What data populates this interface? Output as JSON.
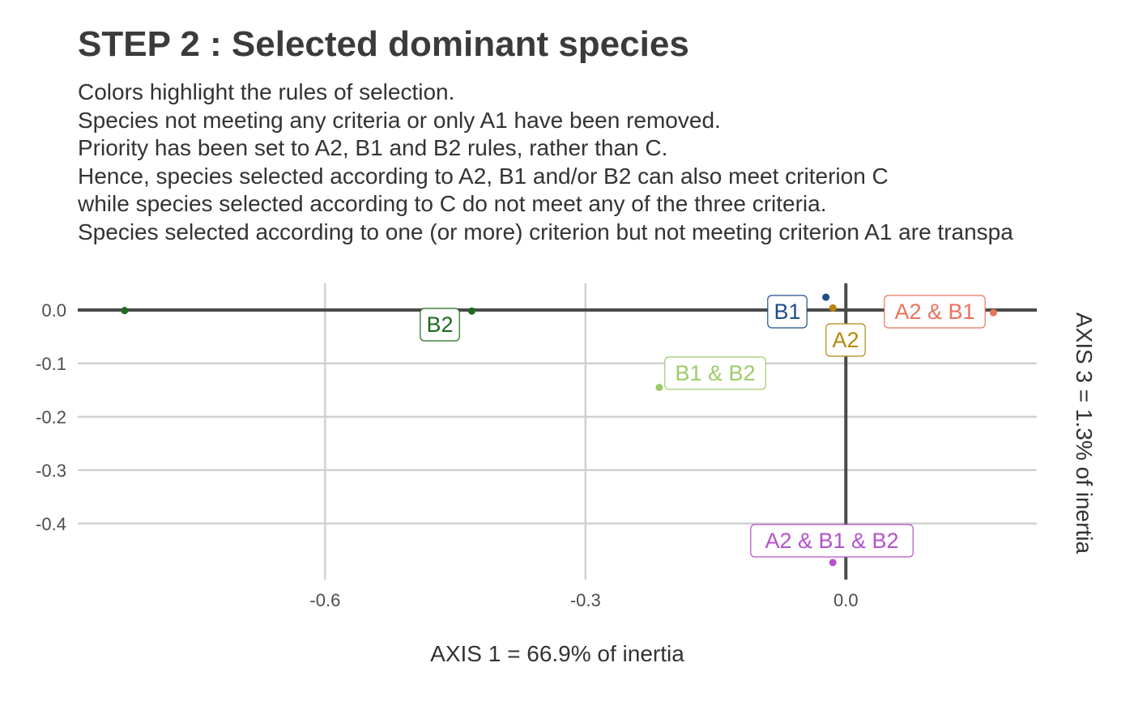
{
  "title": "STEP 2 : Selected dominant species",
  "subtitle_lines": [
    "Colors highlight the rules of selection.",
    "Species not meeting any criteria or only A1 have been removed.",
    "Priority has been set to A2, B1 and B2 rules, rather than C.",
    "Hence, species selected according to A2, B1 and/or B2 can also meet criterion C",
    "while species selected according to C do not meet any of the three criteria.",
    "Species selected according to one (or more) criterion but not meeting criterion A1 are transpa"
  ],
  "chart_data": {
    "type": "scatter",
    "title": "STEP 2 : Selected dominant species",
    "xlabel": "AXIS 1 = 66.9% of inertia",
    "ylabel": "AXIS 3 = 1.3% of inertia",
    "xlim": [
      -0.885,
      0.22
    ],
    "ylim": [
      -0.505,
      0.05
    ],
    "xticks": [
      -0.6,
      -0.3,
      0.0
    ],
    "xtick_labels": [
      "-0.6",
      "-0.3",
      "0.0"
    ],
    "yticks": [
      0.0,
      -0.1,
      -0.2,
      -0.3,
      -0.4
    ],
    "ytick_labels": [
      "0.0",
      "-0.1",
      "-0.2",
      "-0.3",
      "-0.4"
    ],
    "grid": true,
    "reference_lines": {
      "x": 0,
      "y": 0
    },
    "points": [
      {
        "x": -0.831,
        "y": -0.001,
        "color": "#1e6b1e"
      },
      {
        "x": -0.431,
        "y": -0.002,
        "color": "#1e6b1e"
      },
      {
        "x": -0.023,
        "y": 0.024,
        "color": "#1f4e89"
      },
      {
        "x": -0.015,
        "y": 0.004,
        "color": "#b8860b"
      },
      {
        "x": 0.17,
        "y": -0.005,
        "color": "#e8735a"
      },
      {
        "x": -0.215,
        "y": -0.145,
        "color": "#9ccc6a"
      },
      {
        "x": -0.015,
        "y": -0.473,
        "color": "#b452cd"
      }
    ],
    "labels": [
      {
        "text": "B2",
        "color": "#1e6b1e"
      },
      {
        "text": "B1",
        "color": "#1f4e89"
      },
      {
        "text": "A2",
        "color": "#b8860b"
      },
      {
        "text": "A2 & B1",
        "color": "#e8735a"
      },
      {
        "text": "B1 & B2",
        "color": "#9ccc6a"
      },
      {
        "text": "A2 & B1 & B2",
        "color": "#b452cd"
      }
    ]
  }
}
